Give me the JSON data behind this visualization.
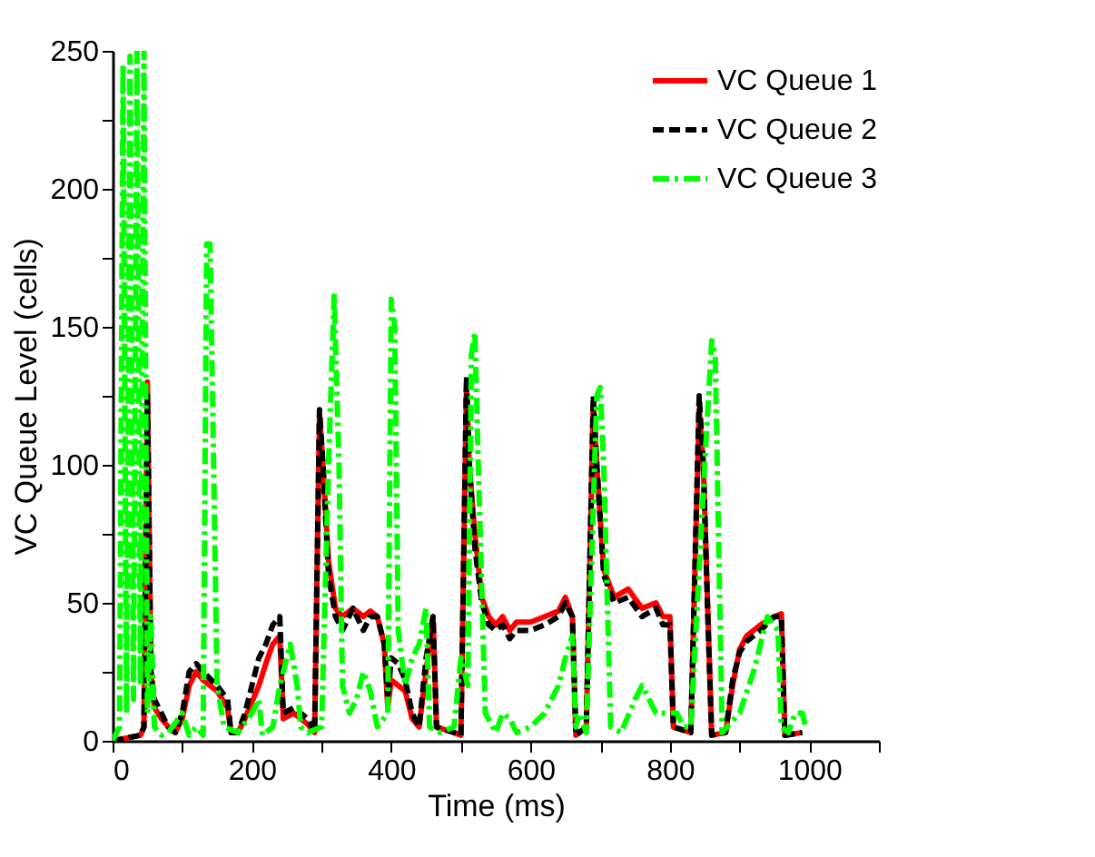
{
  "chart_data": {
    "type": "line",
    "xlabel": "Time (ms)",
    "ylabel": "VC Queue Level (cells)",
    "xlim": [
      0,
      1100
    ],
    "ylim": [
      0,
      250
    ],
    "xticks": [
      0,
      {
        "value": 100,
        "label": null
      },
      200,
      {
        "value": 300,
        "label": null
      },
      400,
      {
        "value": 500,
        "label": null
      },
      600,
      {
        "value": 700,
        "label": null
      },
      800,
      {
        "value": 900,
        "label": null
      },
      1000,
      {
        "value": 1100,
        "label": null
      }
    ],
    "yticks": [
      0,
      {
        "value": 25,
        "label": null
      },
      50,
      {
        "value": 75,
        "label": null
      },
      100,
      {
        "value": 125,
        "label": null
      },
      150,
      {
        "value": 175,
        "label": null
      },
      200,
      {
        "value": 225,
        "label": null
      },
      250
    ],
    "grid": false,
    "legend": "top right",
    "marker": "none",
    "series": [
      {
        "name": "VC Queue 1",
        "color": "#ff0000",
        "line_style": "solid",
        "x": [
          0,
          40,
          45,
          50,
          55,
          60,
          70,
          80,
          90,
          100,
          110,
          120,
          130,
          150,
          165,
          170,
          180,
          190,
          210,
          220,
          230,
          240,
          245,
          260,
          280,
          290,
          297,
          302,
          310,
          320,
          330,
          345,
          360,
          370,
          380,
          390,
          395,
          400,
          410,
          420,
          430,
          440,
          450,
          460,
          465,
          490,
          500,
          508,
          512,
          520,
          530,
          540,
          550,
          560,
          570,
          580,
          600,
          620,
          640,
          650,
          660,
          665,
          680,
          690,
          695,
          705,
          720,
          740,
          760,
          780,
          790,
          800,
          805,
          830,
          842,
          848,
          855,
          860,
          880,
          890,
          900,
          910,
          930,
          950,
          960,
          965,
          990
        ],
        "values": [
          0,
          2,
          5,
          130,
          25,
          12,
          8,
          5,
          3,
          8,
          20,
          25,
          22,
          18,
          12,
          3,
          3,
          8,
          20,
          28,
          35,
          38,
          8,
          10,
          6,
          3,
          118,
          100,
          65,
          48,
          45,
          48,
          45,
          47,
          45,
          35,
          12,
          22,
          20,
          18,
          8,
          5,
          25,
          45,
          5,
          3,
          2,
          128,
          100,
          75,
          52,
          45,
          42,
          45,
          40,
          43,
          43,
          45,
          47,
          52,
          45,
          2,
          5,
          122,
          100,
          62,
          52,
          55,
          48,
          50,
          45,
          45,
          5,
          3,
          120,
          100,
          42,
          2,
          3,
          20,
          33,
          38,
          42,
          45,
          46,
          2,
          3
        ]
      },
      {
        "name": "VC Queue 2",
        "color": "#000000",
        "line_style": "dashed",
        "x": [
          0,
          40,
          45,
          50,
          55,
          60,
          70,
          80,
          90,
          100,
          110,
          120,
          130,
          150,
          165,
          170,
          180,
          190,
          210,
          220,
          230,
          240,
          245,
          260,
          280,
          290,
          297,
          302,
          310,
          320,
          330,
          345,
          360,
          370,
          380,
          390,
          395,
          400,
          410,
          420,
          430,
          440,
          450,
          460,
          465,
          490,
          500,
          508,
          512,
          520,
          530,
          540,
          550,
          560,
          570,
          580,
          600,
          620,
          640,
          650,
          660,
          665,
          680,
          690,
          695,
          705,
          720,
          740,
          760,
          780,
          790,
          800,
          805,
          830,
          842,
          848,
          855,
          860,
          880,
          890,
          900,
          910,
          930,
          950,
          960,
          965,
          990
        ],
        "values": [
          0,
          2,
          5,
          125,
          25,
          15,
          10,
          5,
          3,
          10,
          25,
          28,
          25,
          20,
          15,
          3,
          3,
          10,
          30,
          35,
          42,
          45,
          10,
          12,
          8,
          3,
          120,
          100,
          60,
          45,
          40,
          48,
          40,
          45,
          45,
          35,
          15,
          30,
          28,
          22,
          10,
          5,
          30,
          45,
          5,
          3,
          2,
          132,
          100,
          70,
          50,
          42,
          40,
          42,
          37,
          40,
          40,
          42,
          45,
          50,
          45,
          2,
          5,
          125,
          100,
          60,
          50,
          52,
          45,
          48,
          42,
          42,
          5,
          3,
          125,
          100,
          40,
          2,
          3,
          22,
          32,
          36,
          40,
          45,
          45,
          2,
          3
        ]
      },
      {
        "name": "VC Queue 3",
        "color": "#00ff00",
        "line_style": "dashdot",
        "x": [
          0,
          10,
          15,
          20,
          25,
          30,
          35,
          40,
          45,
          50,
          55,
          60,
          70,
          80,
          100,
          110,
          120,
          130,
          135,
          140,
          145,
          150,
          160,
          180,
          200,
          210,
          215,
          230,
          240,
          250,
          255,
          265,
          270,
          280,
          300,
          310,
          318,
          325,
          330,
          340,
          350,
          360,
          370,
          380,
          395,
          400,
          405,
          410,
          420,
          430,
          440,
          450,
          455,
          470,
          490,
          500,
          510,
          515,
          520,
          525,
          535,
          550,
          560,
          570,
          580,
          600,
          620,
          640,
          650,
          660,
          665,
          670,
          680,
          695,
          700,
          705,
          715,
          730,
          750,
          760,
          780,
          800,
          810,
          820,
          830,
          850,
          860,
          865,
          875,
          900,
          920,
          940,
          955,
          960,
          970,
          980,
          990,
          995
        ],
        "values": [
          0,
          5,
          245,
          10,
          248,
          15,
          250,
          20,
          250,
          10,
          45,
          5,
          2,
          3,
          10,
          2,
          5,
          2,
          180,
          180,
          100,
          20,
          5,
          3,
          10,
          15,
          2,
          5,
          20,
          30,
          35,
          20,
          5,
          3,
          5,
          100,
          162,
          100,
          20,
          10,
          15,
          25,
          18,
          5,
          10,
          160,
          150,
          40,
          20,
          30,
          35,
          48,
          5,
          3,
          5,
          30,
          20,
          140,
          148,
          100,
          10,
          3,
          10,
          8,
          3,
          5,
          10,
          20,
          30,
          38,
          5,
          10,
          3,
          125,
          128,
          100,
          5,
          3,
          15,
          20,
          10,
          10,
          10,
          5,
          5,
          100,
          145,
          140,
          3,
          10,
          25,
          45,
          40,
          5,
          3,
          10,
          10,
          5
        ]
      }
    ]
  }
}
